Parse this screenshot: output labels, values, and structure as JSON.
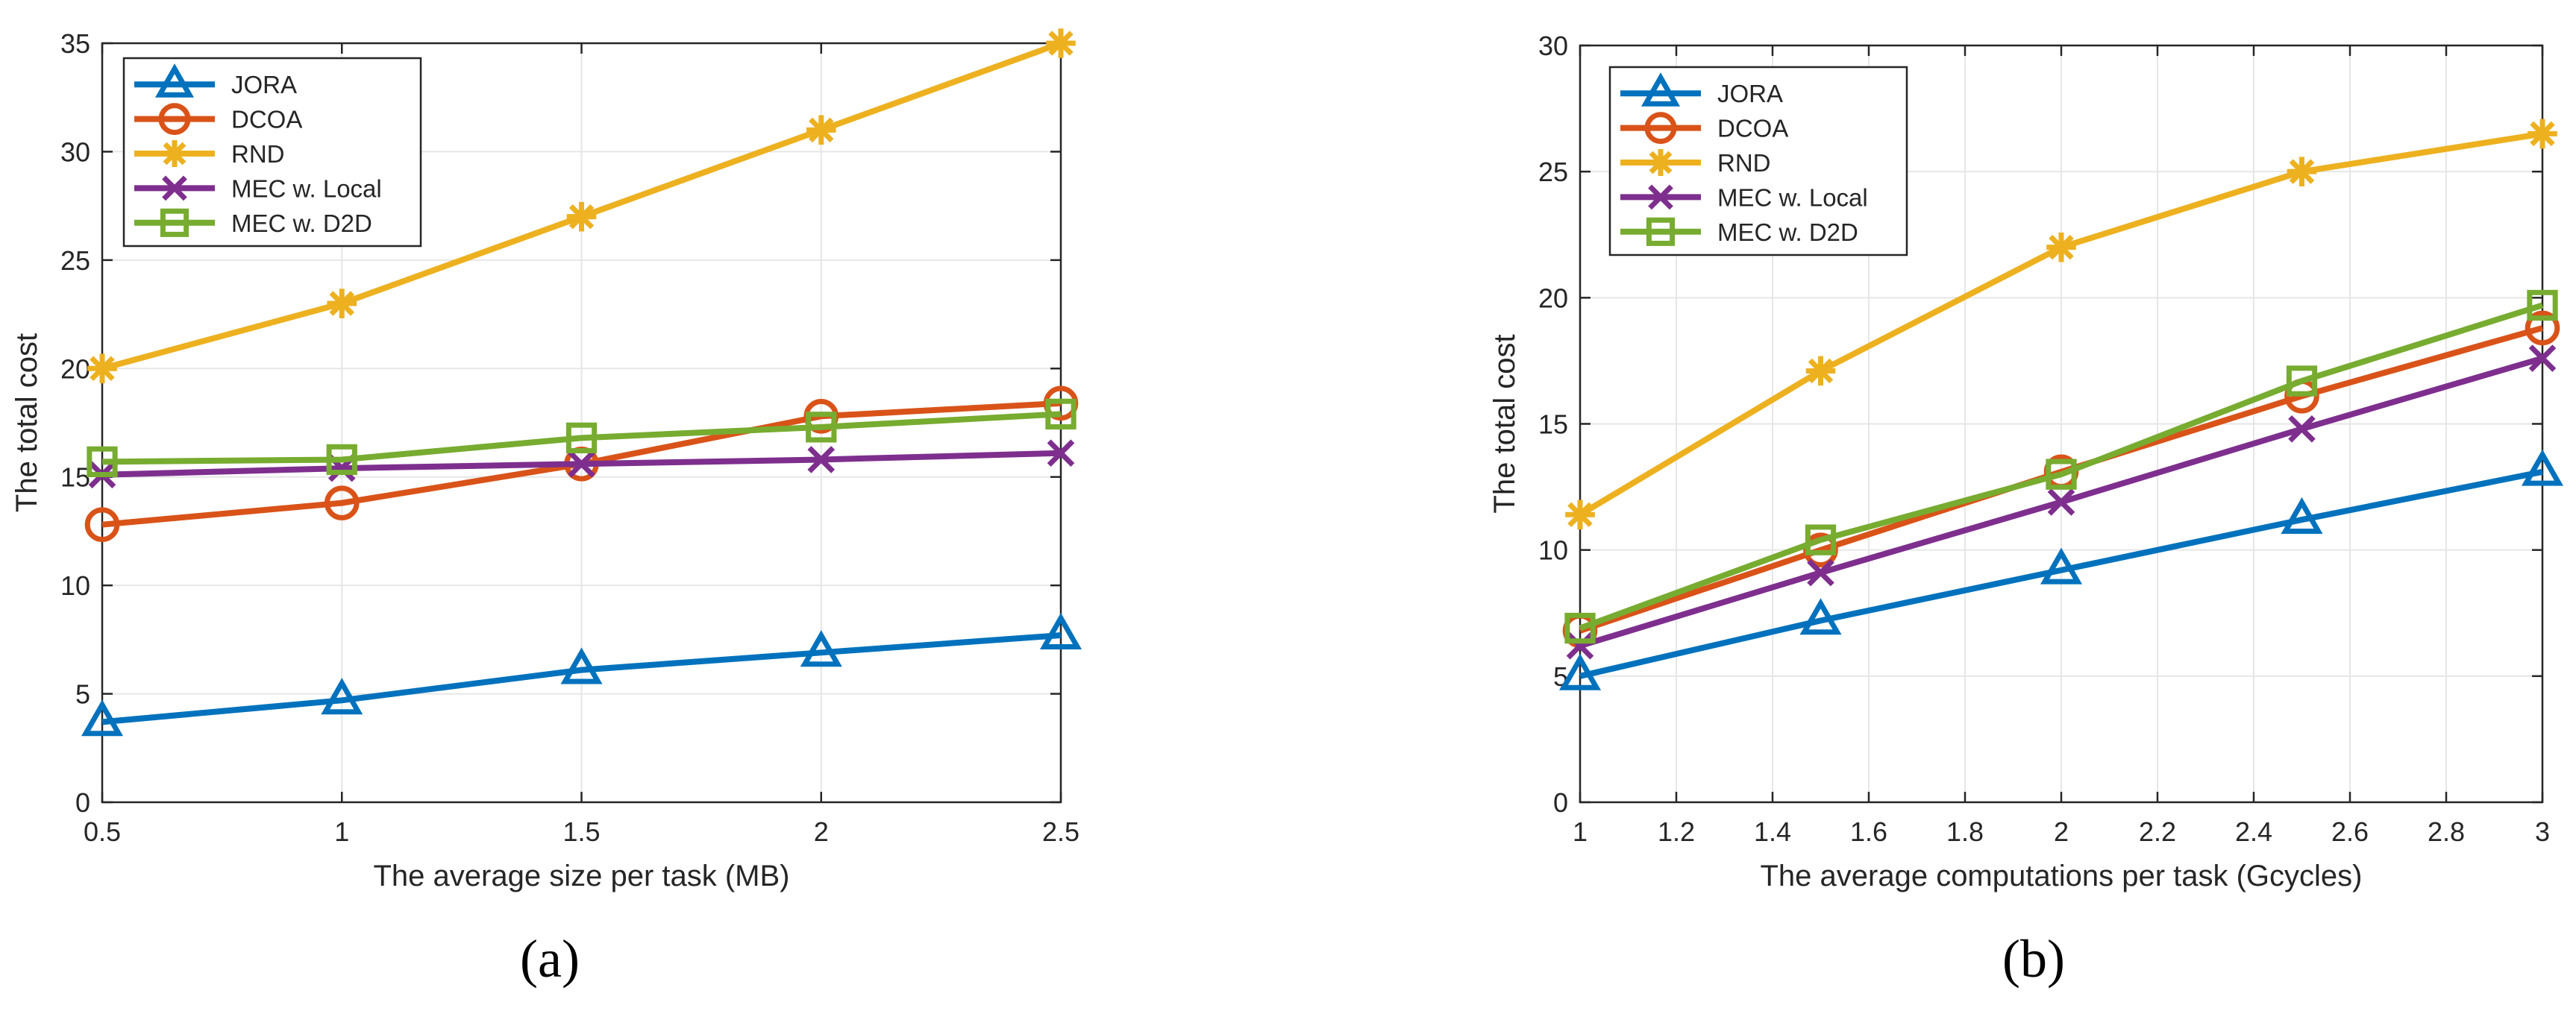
{
  "colors": {
    "JORA": "#0072BD",
    "DCOA": "#D95319",
    "RND": "#EDB120",
    "MEC w. Local": "#7E2F8E",
    "MEC w. D2D": "#77AC30",
    "axis": "#262626",
    "grid": "#e6e6e6"
  },
  "chart_data": [
    {
      "type": "line",
      "panel_label": "(a)",
      "xlabel": "The average size per task (MB)",
      "ylabel": "The total cost",
      "xlim": [
        0.5,
        2.5
      ],
      "ylim": [
        0,
        35
      ],
      "xticks": [
        0.5,
        1,
        1.5,
        2,
        2.5
      ],
      "xtick_labels": [
        "0.5",
        "1",
        "1.5",
        "2",
        "2.5"
      ],
      "yticks": [
        0,
        5,
        10,
        15,
        20,
        25,
        30,
        35
      ],
      "ytick_labels": [
        "0",
        "5",
        "10",
        "15",
        "20",
        "25",
        "30",
        "35"
      ],
      "grid": true,
      "legend_position": "top-left",
      "x": [
        0.5,
        1,
        1.5,
        2,
        2.5
      ],
      "series": [
        {
          "name": "JORA",
          "marker": "triangle",
          "values": [
            3.7,
            4.7,
            6.1,
            6.9,
            7.7
          ]
        },
        {
          "name": "DCOA",
          "marker": "circle",
          "values": [
            12.8,
            13.8,
            15.6,
            17.8,
            18.4
          ]
        },
        {
          "name": "RND",
          "marker": "asterisk",
          "values": [
            20.0,
            23.0,
            27.0,
            31.0,
            35.0
          ]
        },
        {
          "name": "MEC w. Local",
          "marker": "x",
          "values": [
            15.1,
            15.4,
            15.6,
            15.8,
            16.1
          ]
        },
        {
          "name": "MEC w. D2D",
          "marker": "square",
          "values": [
            15.7,
            15.8,
            16.8,
            17.3,
            17.9
          ]
        }
      ]
    },
    {
      "type": "line",
      "panel_label": "(b)",
      "xlabel": "The average computations per task (Gcycles)",
      "ylabel": "The total cost",
      "xlim": [
        1,
        3
      ],
      "ylim": [
        0,
        30
      ],
      "xticks": [
        1,
        1.2,
        1.4,
        1.6,
        1.8,
        2,
        2.2,
        2.4,
        2.6,
        2.8,
        3
      ],
      "xtick_labels": [
        "1",
        "1.2",
        "1.4",
        "1.6",
        "1.8",
        "2",
        "2.2",
        "2.4",
        "2.6",
        "2.8",
        "3"
      ],
      "yticks": [
        0,
        5,
        10,
        15,
        20,
        25,
        30
      ],
      "ytick_labels": [
        "0",
        "5",
        "10",
        "15",
        "20",
        "25",
        "30"
      ],
      "grid": true,
      "legend_position": "top-left",
      "x": [
        1,
        1.5,
        2,
        2.5,
        3
      ],
      "series": [
        {
          "name": "JORA",
          "marker": "triangle",
          "values": [
            5.0,
            7.2,
            9.2,
            11.2,
            13.1
          ]
        },
        {
          "name": "DCOA",
          "marker": "circle",
          "values": [
            6.8,
            10.0,
            13.1,
            16.1,
            18.8
          ]
        },
        {
          "name": "RND",
          "marker": "asterisk",
          "values": [
            11.4,
            17.1,
            22.0,
            25.0,
            26.5
          ]
        },
        {
          "name": "MEC w. Local",
          "marker": "x",
          "values": [
            6.2,
            9.1,
            11.9,
            14.8,
            17.6
          ]
        },
        {
          "name": "MEC w. D2D",
          "marker": "square",
          "values": [
            6.9,
            10.4,
            13.0,
            16.7,
            19.7
          ]
        }
      ]
    }
  ]
}
